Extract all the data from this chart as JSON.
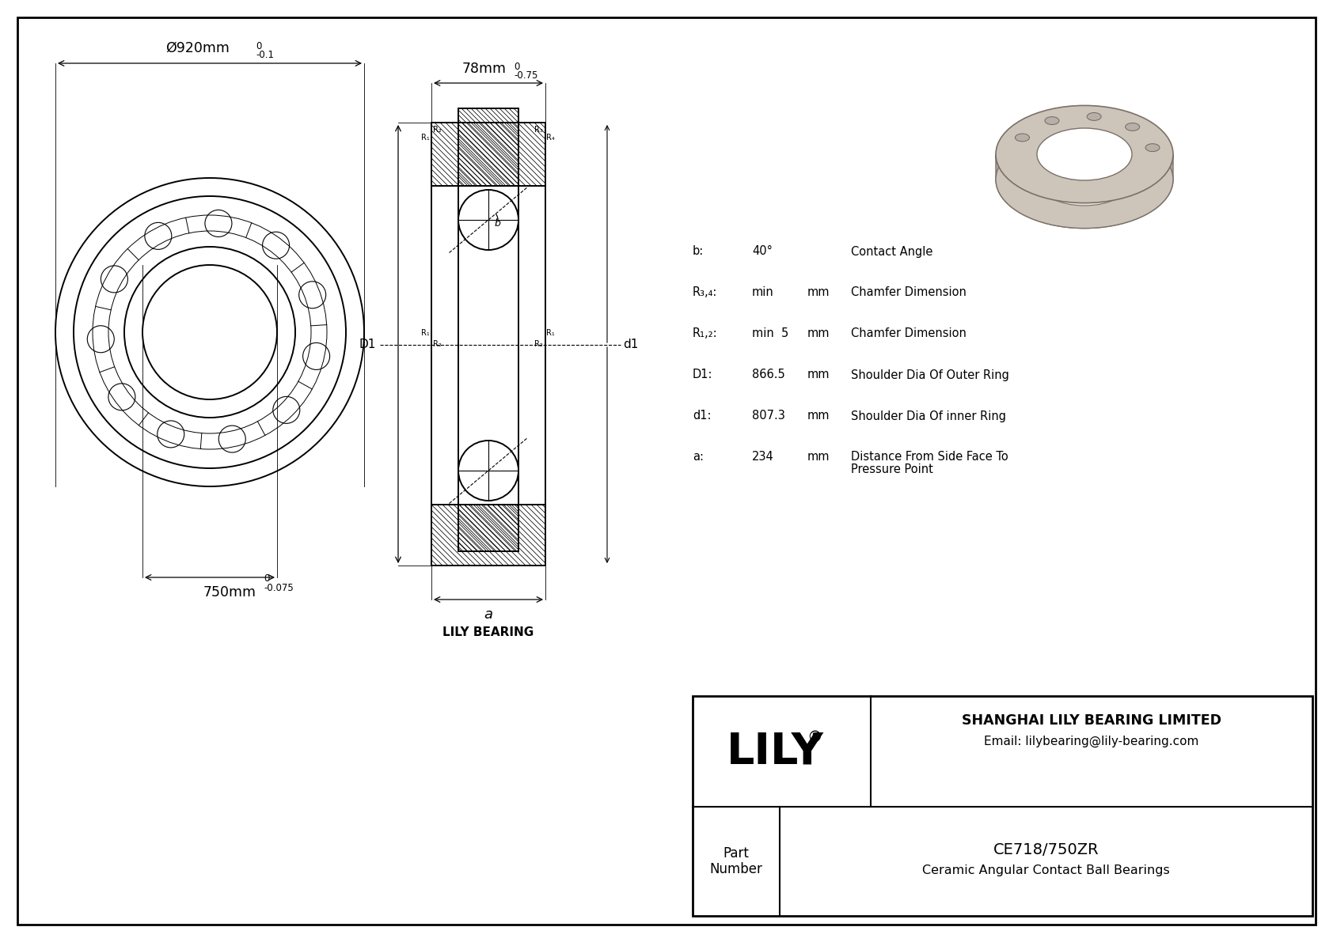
{
  "bg_color": "#ffffff",
  "lc": "#000000",
  "outer_dia": "Ø920mm",
  "outer_dia_tol_upper": "0",
  "outer_dia_tol_lower": "-0.1",
  "inner_dia": "750mm",
  "inner_dia_tol_upper": "0",
  "inner_dia_tol_lower": "-0.075",
  "width": "78mm",
  "width_tol_upper": "0",
  "width_tol_lower": "-0.75",
  "lily_bearing": "LILY BEARING",
  "specs": [
    {
      "param": "b:",
      "value": "40°",
      "unit": "",
      "desc": "Contact Angle"
    },
    {
      "param": "R₃,₄:",
      "value": "min",
      "unit": "mm",
      "desc": "Chamfer Dimension"
    },
    {
      "param": "R₁,₂:",
      "value": "min  5",
      "unit": "mm",
      "desc": "Chamfer Dimension"
    },
    {
      "param": "D1:",
      "value": "866.5",
      "unit": "mm",
      "desc": "Shoulder Dia Of Outer Ring"
    },
    {
      "param": "d1:",
      "value": "807.3",
      "unit": "mm",
      "desc": "Shoulder Dia Of inner Ring"
    },
    {
      "param": "a:",
      "value": "234",
      "unit": "mm",
      "desc": "Distance From Side Face To\nPressure Point"
    }
  ],
  "company": "SHANGHAI LILY BEARING LIMITED",
  "email": "Email: lilybearing@lily-bearing.com",
  "part_number": "CE718/750ZR",
  "part_desc": "Ceramic Angular Contact Ball Bearings",
  "lily_logo": "LILY"
}
